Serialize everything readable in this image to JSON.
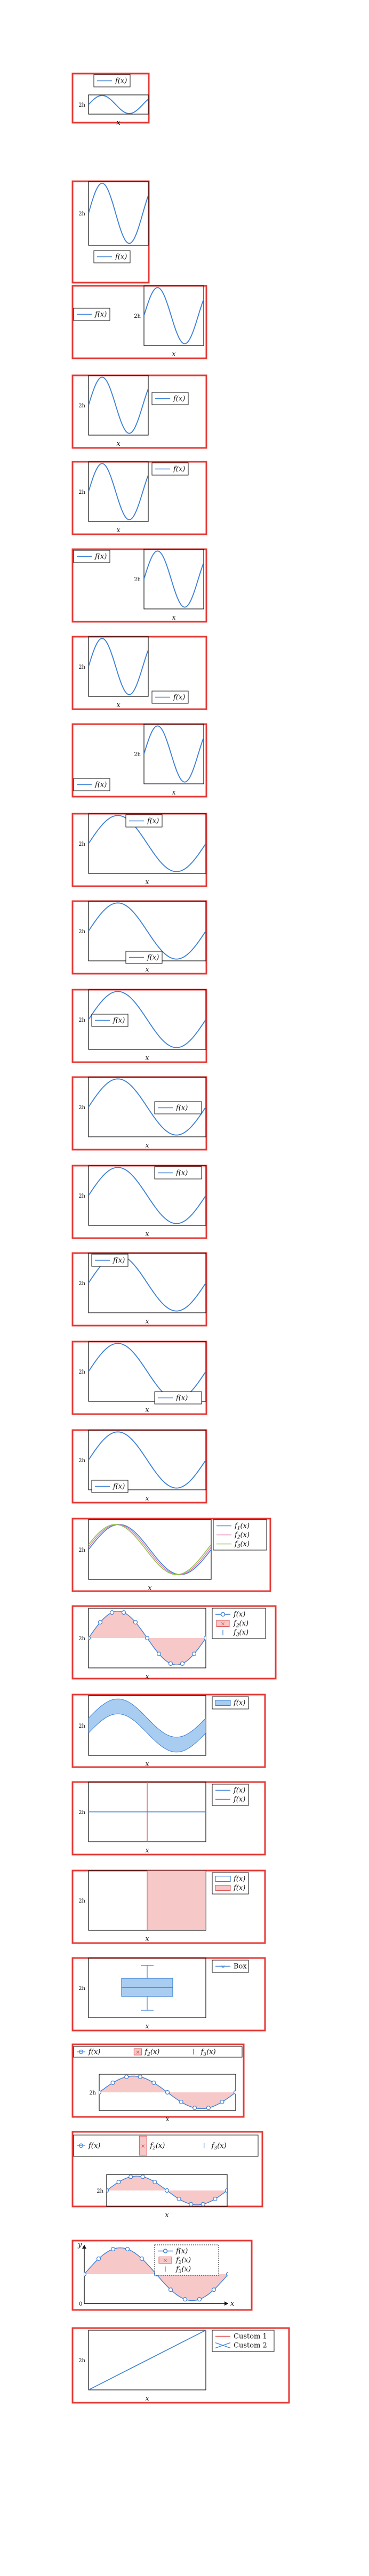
{
  "chart_data": [
    {
      "type": "line",
      "series": [
        {
          "name": "f(x)",
          "function": "sin"
        }
      ],
      "xlabel": "x",
      "ylabel": "2h",
      "legend": "above-left",
      "frame": "red"
    },
    {
      "type": "line",
      "series": [
        {
          "name": "f(x)",
          "function": "sin"
        }
      ],
      "xlabel": "x",
      "ylabel": "2h",
      "legend": "below-right",
      "frame": "red"
    },
    {
      "type": "line",
      "series": [
        {
          "name": "f(x)",
          "function": "sin"
        }
      ],
      "xlabel": "x",
      "ylabel": "2h",
      "legend": "outside-left",
      "frame": "red"
    },
    {
      "type": "line",
      "series": [
        {
          "name": "f(x)",
          "function": "sin"
        }
      ],
      "xlabel": "x",
      "ylabel": "2h",
      "legend": "outside-right",
      "frame": "red"
    },
    {
      "type": "line",
      "series": [
        {
          "name": "f(x)",
          "function": "sin"
        }
      ],
      "xlabel": "x",
      "ylabel": "2h",
      "legend": "outside-right-top",
      "frame": "red"
    },
    {
      "type": "line",
      "series": [
        {
          "name": "f(x)",
          "function": "sin"
        }
      ],
      "xlabel": "x",
      "ylabel": "2h",
      "legend": "outside-left-top",
      "frame": "red"
    },
    {
      "type": "line",
      "series": [
        {
          "name": "f(x)",
          "function": "sin"
        }
      ],
      "xlabel": "x",
      "ylabel": "2h",
      "legend": "outside-right-bottom",
      "frame": "red"
    },
    {
      "type": "line",
      "series": [
        {
          "name": "f(x)",
          "function": "sin"
        }
      ],
      "xlabel": "x",
      "ylabel": "2h",
      "legend": "outside-left-bottom",
      "frame": "red"
    },
    {
      "type": "line",
      "series": [
        {
          "name": "f(x)",
          "function": "sin"
        }
      ],
      "xlabel": "x",
      "ylabel": "2h",
      "legend": "upper-center",
      "frame": "red"
    },
    {
      "type": "line",
      "series": [
        {
          "name": "f(x)",
          "function": "sin"
        }
      ],
      "xlabel": "x",
      "ylabel": "2h",
      "legend": "lower-center",
      "frame": "red"
    },
    {
      "type": "line",
      "series": [
        {
          "name": "f(x)",
          "function": "sin"
        }
      ],
      "xlabel": "x",
      "ylabel": "2h",
      "legend": "center-left",
      "frame": "red"
    },
    {
      "type": "line",
      "series": [
        {
          "name": "f(x)",
          "function": "sin"
        }
      ],
      "xlabel": "x",
      "ylabel": "2h",
      "legend": "center-right",
      "frame": "red"
    },
    {
      "type": "line",
      "series": [
        {
          "name": "f(x)",
          "function": "sin"
        }
      ],
      "xlabel": "x",
      "ylabel": "2h",
      "legend": "upper-right",
      "frame": "red"
    },
    {
      "type": "line",
      "series": [
        {
          "name": "f(x)",
          "function": "sin"
        }
      ],
      "xlabel": "x",
      "ylabel": "2h",
      "legend": "upper-left",
      "frame": "red"
    },
    {
      "type": "line",
      "series": [
        {
          "name": "f(x)",
          "function": "sin"
        }
      ],
      "xlabel": "x",
      "ylabel": "2h",
      "legend": "lower-right",
      "frame": "red"
    },
    {
      "type": "line",
      "series": [
        {
          "name": "f(x)",
          "function": "sin"
        }
      ],
      "xlabel": "x",
      "ylabel": "2h",
      "legend": "lower-left",
      "frame": "red"
    },
    {
      "type": "line",
      "series": [
        {
          "name": "f_1(x)",
          "color": "#3a7fd5"
        },
        {
          "name": "f_2(x)",
          "color": "#e87ab0"
        },
        {
          "name": "f_3(x)",
          "color": "#8bc34a"
        }
      ],
      "xlabel": "x",
      "ylabel": "2h",
      "legend": "right",
      "frame": "red"
    },
    {
      "type": "line",
      "series": [
        {
          "name": "f(x)",
          "marker": "circle"
        },
        {
          "name": "f_2(x)",
          "marker": "x-box"
        },
        {
          "name": "f_3(x)",
          "marker": "errorbar"
        }
      ],
      "xlabel": "x",
      "ylabel": "2h",
      "legend": "right",
      "frame": "red"
    },
    {
      "type": "area",
      "series": [
        {
          "name": "f(x)",
          "style": "band"
        }
      ],
      "xlabel": "x",
      "ylabel": "2h",
      "legend": "upper-right",
      "frame": "red"
    },
    {
      "type": "line",
      "series": [
        {
          "name": "f(x)",
          "orientation": "horizontal"
        },
        {
          "name": "f(x)",
          "orientation": "vertical",
          "color": "#e05555"
        }
      ],
      "xlabel": "x",
      "ylabel": "2h",
      "legend": "right",
      "frame": "red"
    },
    {
      "type": "area",
      "series": [
        {
          "name": "f(x)",
          "fill": "none"
        },
        {
          "name": "f(x)",
          "fill": "#f7c8c8"
        }
      ],
      "xlabel": "x",
      "ylabel": "2h",
      "legend": "right",
      "frame": "red"
    },
    {
      "type": "box",
      "series": [
        {
          "name": "Box"
        }
      ],
      "xlabel": "x",
      "ylabel": "2h",
      "legend": "upper-right",
      "frame": "red"
    },
    {
      "type": "line",
      "series": [
        {
          "name": "f(x)",
          "marker": "circle"
        },
        {
          "name": "f_2(x)",
          "marker": "x-box"
        },
        {
          "name": "f_3(x)",
          "marker": "errorbar"
        }
      ],
      "xlabel": "x",
      "ylabel": "2h",
      "legend": "above-horizontal",
      "frame": "red"
    },
    {
      "type": "line",
      "series": [
        {
          "name": "f(x)",
          "marker": "circle"
        },
        {
          "name": "f_2(x)",
          "marker": "x-box"
        },
        {
          "name": "f_3(x)",
          "marker": "errorbar"
        }
      ],
      "xlabel": "x",
      "ylabel": "2h",
      "legend": "above-horizontal-tall",
      "frame": "red"
    },
    {
      "type": "line",
      "series": [
        {
          "name": "f(x)",
          "marker": "circle"
        },
        {
          "name": "f_2(x)",
          "marker": "x-box"
        },
        {
          "name": "f_3(x)",
          "marker": "errorbar"
        }
      ],
      "xlabel": "x",
      "ylabel": "y",
      "origin": "0",
      "legend": "upper-right-dotted",
      "axes": "arrows",
      "frame": "red"
    },
    {
      "type": "line",
      "series": [
        {
          "name": "Custom 1",
          "color": "#e05555"
        },
        {
          "name": "Custom 2",
          "color": "#3a7fd5"
        }
      ],
      "xlabel": "x",
      "ylabel": "2h",
      "legend": "right",
      "frame": "red"
    }
  ],
  "colors": {
    "frame": "#e53935",
    "line": "#3a7fd5",
    "fill_pink": "#f7c8c8",
    "fill_blue": "#a9cdf0",
    "pink_line": "#e87ab0",
    "green_line": "#8bc34a"
  }
}
